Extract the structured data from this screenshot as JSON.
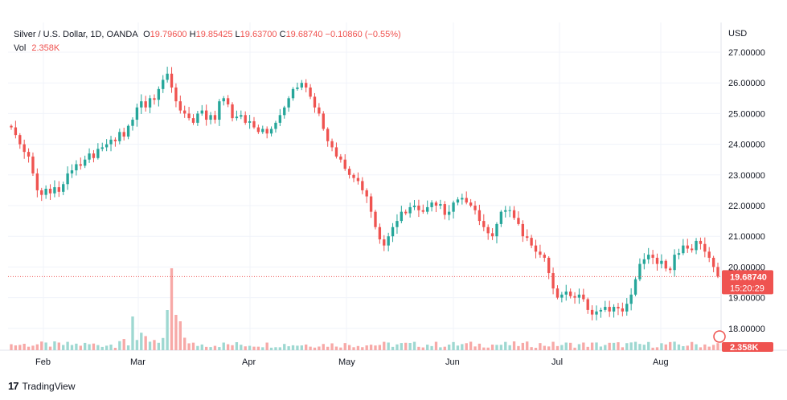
{
  "header": {
    "symbol": "Silver / U.S. Dollar, 1D, OANDA",
    "open_label": "O",
    "open": "19.79600",
    "high_label": "H",
    "high": "19.85425",
    "low_label": "L",
    "low": "19.63700",
    "close_label": "C",
    "close": "19.68740",
    "change": "−0.10860 (−0.55%)",
    "vol_label": "Vol",
    "vol": "2.358K"
  },
  "price_axis": {
    "currency": "USD",
    "labels": [
      "27.00000",
      "26.00000",
      "25.00000",
      "24.00000",
      "23.00000",
      "22.00000",
      "21.00000",
      "20.00000",
      "19.00000",
      "18.00000"
    ]
  },
  "last_price": {
    "value": "19.68740",
    "countdown": "15:20:29",
    "volume_tag": "2.358K"
  },
  "time_axis": [
    "Feb",
    "Mar",
    "Apr",
    "May",
    "Jun",
    "Jul",
    "Aug"
  ],
  "branding": "TradingView",
  "colors": {
    "up": "#26a69a",
    "down": "#ef5350",
    "vol_up": "#9ed8d1",
    "vol_down": "#f7a9a7",
    "grid": "#f0f3fa"
  },
  "chart_data": {
    "type": "candlestick",
    "title": "Silver / U.S. Dollar, 1D, OANDA",
    "y_axis": "USD",
    "ylim": [
      17.6,
      27.7
    ],
    "x_ticks": [
      "Feb",
      "Mar",
      "Apr",
      "May",
      "Jun",
      "Jul",
      "Aug"
    ],
    "closes": [
      24.55,
      24.3,
      24.0,
      23.75,
      23.6,
      23.05,
      22.5,
      22.35,
      22.55,
      22.4,
      22.6,
      22.45,
      22.7,
      23.05,
      23.15,
      23.35,
      23.3,
      23.5,
      23.7,
      23.55,
      23.85,
      23.9,
      24.0,
      24.15,
      24.1,
      24.4,
      24.25,
      24.6,
      24.8,
      25.2,
      25.4,
      25.2,
      25.5,
      25.45,
      25.8,
      26.1,
      26.3,
      25.85,
      25.4,
      25.1,
      25.0,
      24.85,
      24.7,
      25.0,
      25.1,
      24.8,
      24.95,
      24.8,
      25.4,
      25.5,
      25.3,
      24.85,
      24.9,
      24.95,
      24.7,
      24.75,
      24.55,
      24.4,
      24.5,
      24.35,
      24.5,
      24.7,
      24.95,
      25.2,
      25.5,
      25.8,
      25.85,
      26.0,
      25.85,
      25.55,
      25.2,
      25.0,
      24.5,
      24.1,
      23.9,
      23.6,
      23.5,
      23.2,
      23.0,
      22.9,
      22.8,
      22.5,
      22.3,
      21.8,
      21.3,
      20.9,
      20.7,
      21.0,
      21.3,
      21.5,
      21.8,
      21.75,
      21.95,
      22.0,
      21.85,
      21.8,
      21.95,
      22.1,
      22.0,
      22.05,
      21.7,
      21.8,
      22.1,
      22.2,
      22.25,
      22.1,
      22.0,
      21.85,
      21.5,
      21.3,
      21.1,
      21.0,
      21.4,
      21.8,
      21.85,
      21.85,
      21.6,
      21.4,
      21.0,
      20.95,
      20.7,
      20.5,
      20.4,
      20.3,
      19.8,
      19.3,
      19.0,
      19.1,
      19.2,
      19.05,
      19.0,
      19.1,
      18.95,
      18.6,
      18.45,
      18.55,
      18.6,
      18.7,
      18.55,
      18.7,
      18.65,
      18.55,
      18.8,
      19.1,
      19.6,
      20.1,
      20.25,
      20.4,
      20.3,
      20.1,
      20.2,
      19.95,
      19.9,
      20.4,
      20.45,
      20.7,
      20.6,
      20.55,
      20.85,
      20.75,
      20.5,
      20.3,
      20.0,
      19.69
    ],
    "volume": {
      "unit": "K",
      "max_visible": 2.0,
      "last": 2.358
    }
  }
}
